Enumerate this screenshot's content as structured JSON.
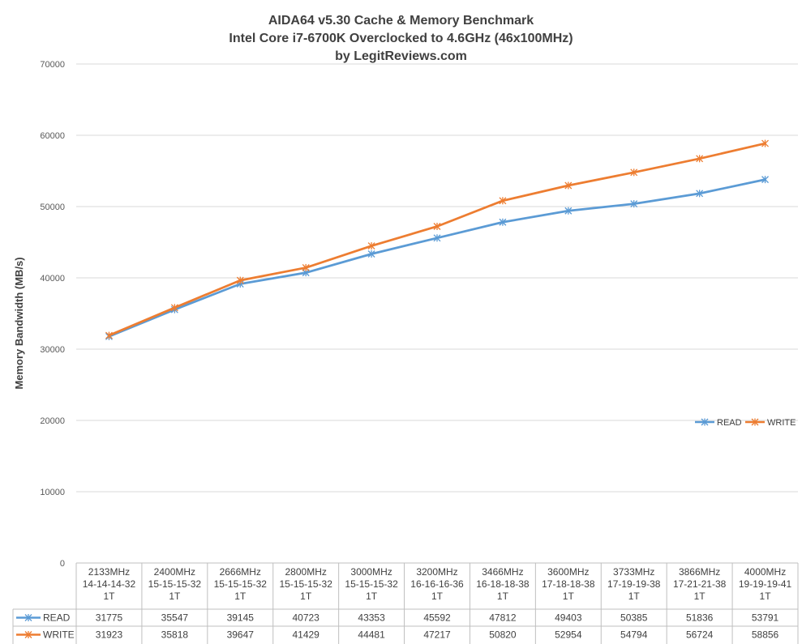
{
  "chart_data": {
    "type": "line",
    "title": [
      "AIDA64 v5.30 Cache & Memory Benchmark",
      "Intel Core i7-6700K Overclocked to 4.6GHz (46x100MHz)",
      "by LegitReviews.com"
    ],
    "xlabel": "",
    "ylabel": "Memory Bandwidth (MB/s)",
    "ylim": [
      0,
      70000
    ],
    "yticks": [
      0,
      10000,
      20000,
      30000,
      40000,
      50000,
      60000,
      70000
    ],
    "grid": true,
    "legend": {
      "position": "right, inside plot area, below middle"
    },
    "categories": [
      [
        "2133MHz",
        "14-14-14-32",
        "1T"
      ],
      [
        "2400MHz",
        "15-15-15-32",
        "1T"
      ],
      [
        "2666MHz",
        "15-15-15-32",
        "1T"
      ],
      [
        "2800MHz",
        "15-15-15-32",
        "1T"
      ],
      [
        "3000MHz",
        "15-15-15-32",
        "1T"
      ],
      [
        "3200MHz",
        "16-16-16-36",
        "1T"
      ],
      [
        "3466MHz",
        "16-18-18-38",
        "1T"
      ],
      [
        "3600MHz",
        "17-18-18-38",
        "1T"
      ],
      [
        "3733MHz",
        "17-19-19-38",
        "1T"
      ],
      [
        "3866MHz",
        "17-21-21-38",
        "1T"
      ],
      [
        "4000MHz",
        "19-19-19-41",
        "1T"
      ]
    ],
    "series": [
      {
        "name": "READ",
        "color": "#5b9bd5",
        "values": [
          31775,
          35547,
          39145,
          40723,
          43353,
          45592,
          47812,
          49403,
          50385,
          51836,
          53791
        ]
      },
      {
        "name": "WRITE",
        "color": "#ed7d31",
        "values": [
          31923,
          35818,
          39647,
          41429,
          44481,
          47217,
          50820,
          52954,
          54794,
          56724,
          58856
        ]
      }
    ],
    "data_table": true
  }
}
